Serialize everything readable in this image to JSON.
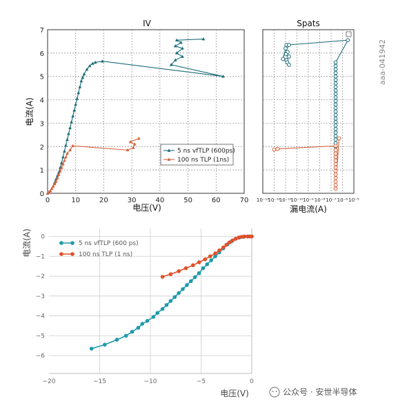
{
  "side_label": "aaa-041942",
  "watermark": "公众号 · 安世半导体",
  "chart_data": [
    {
      "type": "line",
      "title": "IV",
      "xlabel": "电压(V)",
      "ylabel": "电流(A)",
      "xlim": [
        0,
        70
      ],
      "ylim": [
        0,
        7
      ],
      "xticks": [
        "0",
        "10",
        "20",
        "30",
        "40",
        "50",
        "60",
        "70"
      ],
      "yticks": [
        "0",
        "1",
        "2",
        "3",
        "4",
        "5",
        "6",
        "7"
      ],
      "grid": true,
      "legend_position": "center-right",
      "series": [
        {
          "name": "5 ns vfTLP (600ps)",
          "color": "#1a6b78",
          "marker": "triangle",
          "x": [
            0,
            0.5,
            1,
            1.5,
            2,
            2.5,
            3,
            3.5,
            4,
            4.5,
            5,
            5.5,
            6,
            6.5,
            7,
            7.5,
            8,
            8.5,
            9,
            9.5,
            10,
            10.5,
            11,
            11.5,
            12,
            12.5,
            13,
            14,
            15,
            16,
            17,
            19.5,
            62.5,
            44,
            45.5,
            48,
            46,
            48,
            45.5,
            47.5,
            46,
            55.5
          ],
          "y": [
            0,
            0.05,
            0.1,
            0.2,
            0.3,
            0.45,
            0.6,
            0.75,
            0.9,
            1.1,
            1.3,
            1.55,
            1.8,
            2.05,
            2.3,
            2.55,
            2.8,
            3.05,
            3.3,
            3.55,
            3.8,
            4.05,
            4.3,
            4.55,
            4.8,
            4.95,
            5.1,
            5.3,
            5.45,
            5.55,
            5.6,
            5.65,
            5.0,
            5.5,
            5.7,
            5.85,
            6.0,
            6.2,
            6.3,
            6.45,
            6.55,
            6.6
          ]
        },
        {
          "name": "100 ns TLP (1ns)",
          "color": "#d9603b",
          "marker": "triangle",
          "x": [
            0,
            0.5,
            1,
            1.5,
            2,
            2.5,
            3,
            3.5,
            4,
            4.5,
            5,
            5.5,
            6,
            6.5,
            7,
            8,
            9,
            28.5,
            30.5,
            31,
            29.5,
            32.5
          ],
          "y": [
            0,
            0.05,
            0.1,
            0.2,
            0.3,
            0.4,
            0.5,
            0.65,
            0.8,
            0.95,
            1.1,
            1.25,
            1.4,
            1.55,
            1.7,
            1.85,
            2.03,
            1.85,
            1.95,
            2.1,
            2.2,
            2.35
          ]
        }
      ]
    },
    {
      "type": "line",
      "title": "Spats",
      "xlabel": "漏电流(A)",
      "ylabel": "",
      "xscale": "log",
      "xlim": [
        1e-13,
        1e-05
      ],
      "ylim": [
        0,
        7
      ],
      "xticks": [
        "10⁻¹³",
        "10⁻¹²",
        "10⁻¹¹",
        "10⁻¹⁰",
        "10⁻⁹",
        "10⁻⁸",
        "10⁻⁷",
        "10⁻⁶",
        "10⁻⁵"
      ],
      "grid": true,
      "series": [
        {
          "name": "5 ns vfTLP (600ps)",
          "color": "#1a6b78",
          "marker": "circle",
          "x": [
            1.3e-11,
            1e-11,
            1.5e-11,
            1.1e-11,
            2e-11,
            1.2e-11,
            1.4e-11,
            2e-11,
            6e-12,
            1.2e-11,
            2e-11,
            3e-06,
            2.5e-07,
            2.5e-07,
            2.5e-07,
            2.5e-07,
            2.5e-07,
            2.5e-07,
            2.5e-07,
            2.5e-07,
            2.5e-07,
            2.5e-07,
            2.5e-07,
            2.5e-07,
            2.5e-07,
            2.5e-07,
            2.5e-07,
            2.5e-07,
            2.5e-07,
            2.5e-07,
            2.5e-07,
            2.5e-07,
            2.5e-07,
            2.5e-07,
            2.5e-07,
            2.5e-07,
            2.5e-07,
            2.5e-07,
            2.5e-07,
            2.5e-07
          ],
          "y": [
            6.3,
            6.2,
            6.05,
            5.95,
            5.85,
            5.7,
            5.6,
            5.5,
            5.75,
            6.35,
            6.35,
            6.55,
            5.6,
            5.45,
            5.3,
            5.15,
            5.0,
            4.85,
            4.7,
            4.55,
            4.4,
            4.25,
            4.1,
            3.95,
            3.8,
            3.65,
            3.5,
            3.35,
            3.2,
            3.05,
            2.9,
            2.75,
            2.6,
            2.45,
            2.3,
            2.15,
            2.0,
            1.85,
            1.7,
            1.55
          ]
        },
        {
          "name": "100 ns TLP (1ns)",
          "color": "#d9603b",
          "marker": "circle",
          "x": [
            1e-12,
            2e-12,
            2.5e-07,
            2.5e-07,
            2.5e-07,
            2.5e-07,
            2.5e-07,
            2.5e-07,
            2.5e-07,
            2.5e-07,
            2.5e-07,
            2.5e-07,
            2.5e-07,
            2.5e-07,
            2.5e-07,
            5e-07
          ],
          "y": [
            1.87,
            1.9,
            2.03,
            1.85,
            1.7,
            1.55,
            1.4,
            1.25,
            1.1,
            0.95,
            0.8,
            0.65,
            0.5,
            0.35,
            0.2,
            2.35
          ]
        }
      ]
    },
    {
      "type": "line",
      "title": "",
      "xlabel": "电压(V)",
      "ylabel": "电流(A)",
      "xlim": [
        -20,
        0
      ],
      "ylim": [
        -6.9,
        0.4
      ],
      "xticks": [
        "−20",
        "−15",
        "−10",
        "−5",
        "0"
      ],
      "yticks": [
        "0",
        "−1",
        "−2",
        "−3",
        "−4",
        "−5",
        "−6"
      ],
      "grid": true,
      "legend_position": "top-left",
      "series": [
        {
          "name": "5 ns vfTLP (600 ps)",
          "color": "#1f9aab",
          "marker": "circle",
          "x": [
            -15.8,
            -14.5,
            -13.3,
            -12.4,
            -11.8,
            -11.2,
            -10.8,
            -10.3,
            -9.7,
            -9.3,
            -8.8,
            -8.4,
            -8.0,
            -7.6,
            -7.2,
            -6.8,
            -6.4,
            -6.0,
            -5.6,
            -5.2,
            -4.8,
            -4.4,
            -4.0,
            -3.6,
            -3.2,
            -2.8,
            -2.4,
            -2.0,
            -1.6,
            -1.2,
            -0.8,
            -0.4,
            0
          ],
          "y": [
            -5.65,
            -5.45,
            -5.2,
            -5.0,
            -4.8,
            -4.6,
            -4.4,
            -4.25,
            -4.05,
            -3.85,
            -3.65,
            -3.45,
            -3.25,
            -3.05,
            -2.85,
            -2.65,
            -2.45,
            -2.25,
            -2.05,
            -1.85,
            -1.6,
            -1.4,
            -1.2,
            -1.0,
            -0.8,
            -0.6,
            -0.4,
            -0.25,
            -0.12,
            -0.05,
            -0.02,
            0,
            0
          ]
        },
        {
          "name": "100 ns TLP (1 ns)",
          "color": "#e0512a",
          "marker": "circle",
          "x": [
            -8.8,
            -8.0,
            -7.2,
            -6.5,
            -5.8,
            -5.2,
            -4.6,
            -4.1,
            -3.6,
            -3.2,
            -2.8,
            -2.5,
            -2.2,
            -1.9,
            -1.6,
            -1.3,
            -1.0,
            -0.7,
            -0.4,
            -0.2,
            0
          ],
          "y": [
            -2.03,
            -1.9,
            -1.75,
            -1.6,
            -1.45,
            -1.3,
            -1.15,
            -1.0,
            -0.85,
            -0.7,
            -0.55,
            -0.42,
            -0.3,
            -0.2,
            -0.12,
            -0.06,
            -0.02,
            0,
            0,
            0,
            0
          ]
        }
      ]
    }
  ]
}
